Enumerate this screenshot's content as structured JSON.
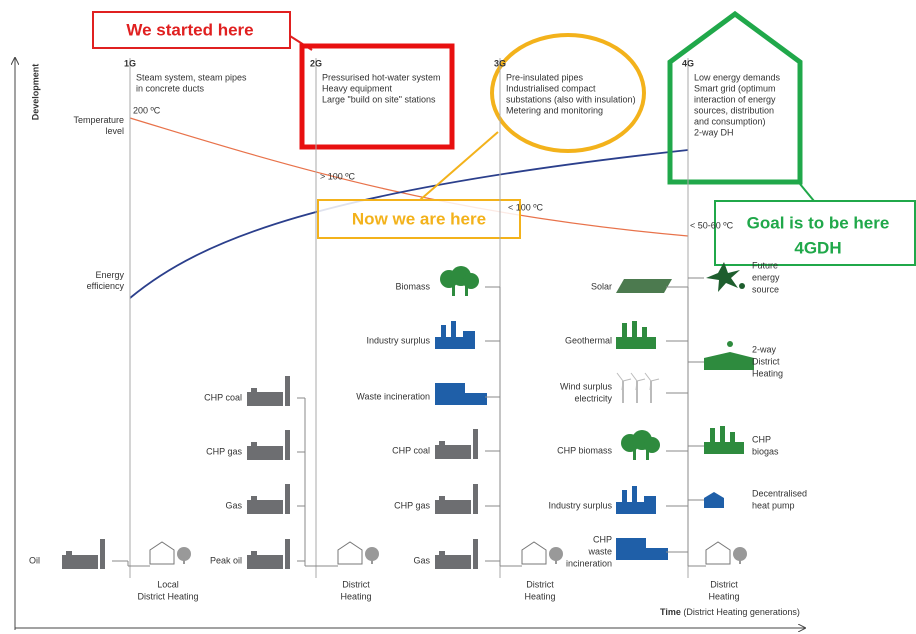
{
  "callouts": {
    "started": "We started here",
    "now": "Now we are here",
    "goal": [
      "Goal is to be here",
      "4GDH"
    ]
  },
  "axes": {
    "y": "Development",
    "x_bold": "Time",
    "x_rest": "(District Heating generations)"
  },
  "curves": {
    "temperature": [
      "Temperature",
      "level"
    ],
    "efficiency": [
      "Energy",
      "efficiency"
    ]
  },
  "generations": [
    {
      "label": "1G",
      "description": [
        "Steam system, steam pipes",
        "in concrete ducts"
      ],
      "temperature": "200 ºC",
      "sources": [
        {
          "label": [
            "Oil"
          ]
        }
      ],
      "network": [
        "Local",
        "District Heating"
      ]
    },
    {
      "label": "2G",
      "description": [
        "Pressurised hot-water system",
        "Heavy equipment",
        "Large \"build on site\" stations"
      ],
      "temperature": "> 100 ºC",
      "sources": [
        {
          "label": [
            "CHP coal"
          ]
        },
        {
          "label": [
            "CHP gas"
          ]
        },
        {
          "label": [
            "Gas"
          ]
        },
        {
          "label": [
            "Peak oil"
          ]
        }
      ],
      "network": [
        "District",
        "Heating"
      ]
    },
    {
      "label": "3G",
      "description": [
        "Pre-insulated pipes",
        "Industrialised compact",
        "substations (also with insulation)",
        "Metering and monitoring"
      ],
      "temperature": "< 100 ºC",
      "sources": [
        {
          "label": [
            "Biomass"
          ]
        },
        {
          "label": [
            "Industry surplus"
          ]
        },
        {
          "label": [
            "Waste incineration"
          ]
        },
        {
          "label": [
            "CHP coal"
          ]
        },
        {
          "label": [
            "CHP gas"
          ]
        },
        {
          "label": [
            "Gas"
          ]
        }
      ],
      "network": [
        "District",
        "Heating"
      ]
    },
    {
      "label": "4G",
      "description": [
        "Low energy demands",
        "Smart grid (optimum",
        "interaction of energy",
        "sources, distribution",
        "and consumption)",
        "2-way DH"
      ],
      "temperature": "< 50-60 ºC",
      "sources": [
        {
          "label": [
            "Solar"
          ]
        },
        {
          "label": [
            "Geothermal"
          ]
        },
        {
          "label": [
            "Wind surplus",
            "electricity"
          ]
        },
        {
          "label": [
            "CHP biomass"
          ]
        },
        {
          "label": [
            "Industry surplus"
          ]
        },
        {
          "label": [
            "CHP",
            "waste",
            "incineration"
          ]
        }
      ],
      "future_sources": [
        {
          "label": [
            "Future",
            "energy",
            "source"
          ]
        },
        {
          "label": [
            "2-way",
            "District",
            "Heating"
          ]
        },
        {
          "label": [
            "CHP",
            "biogas"
          ]
        },
        {
          "label": [
            "Decentralised",
            "heat pump"
          ]
        }
      ],
      "network": [
        "District",
        "Heating"
      ]
    }
  ]
}
